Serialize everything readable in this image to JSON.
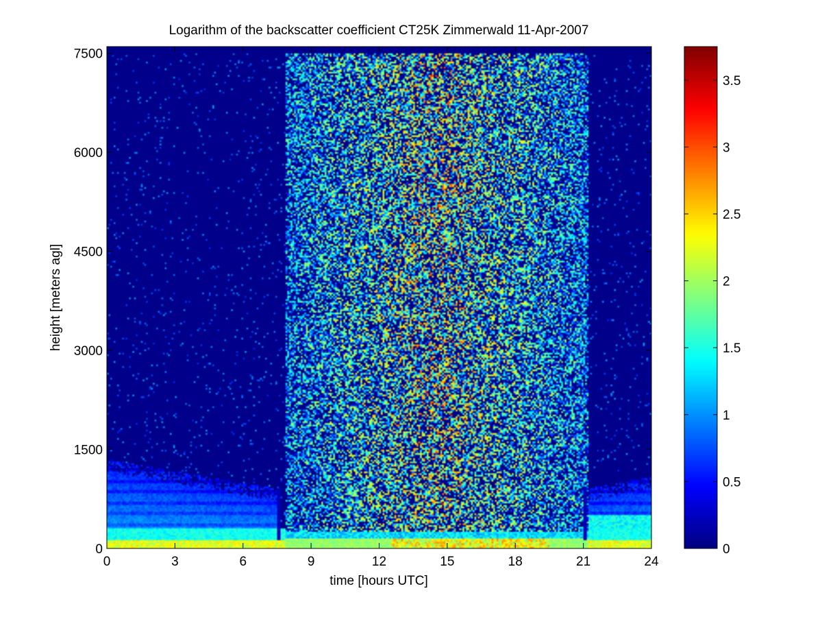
{
  "chart_data": {
    "type": "heatmap",
    "title": "Logarithm of the backscatter coefficient CT25K Zimmerwald 11-Apr-2007",
    "xlabel": "time [hours UTC]",
    "ylabel": "height [meters agl]",
    "xlim": [
      0,
      24
    ],
    "ylim": [
      0,
      7600
    ],
    "xticks": [
      0,
      3,
      6,
      9,
      12,
      15,
      18,
      21,
      24
    ],
    "yticks": [
      0,
      1500,
      3000,
      4500,
      6000,
      7500
    ],
    "colorbar": {
      "colormap": "jet",
      "range": [
        0,
        3.75
      ],
      "ticks": [
        0,
        0.5,
        1,
        1.5,
        2,
        2.5,
        3,
        3.5
      ],
      "tick_labels": [
        "0",
        "0.5",
        "1",
        "1.5",
        "2",
        "2.5",
        "3",
        "3.5"
      ]
    },
    "features": {
      "noisy_daytime_signal_hours": [
        7.9,
        21.2
      ],
      "instrument_gaps_hours": [
        7.6,
        21.1
      ],
      "boundary_layer_top_m": {
        "t0": 1350,
        "t7_5": 900,
        "t24": 1100
      },
      "surface_layer_peak_value": 2.8
    },
    "grid": false
  }
}
